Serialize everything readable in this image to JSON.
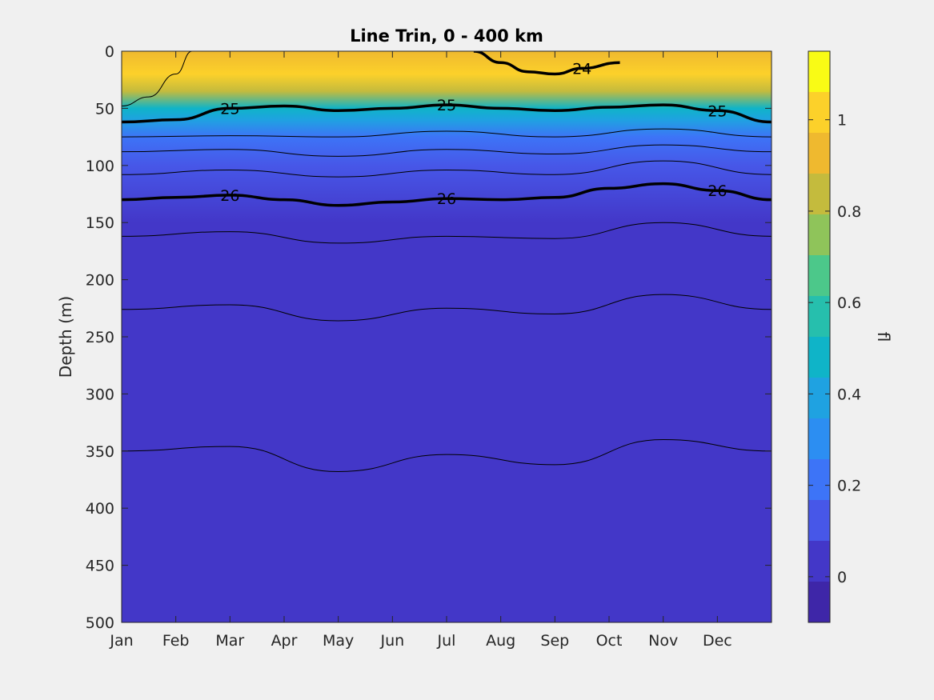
{
  "chart_data": {
    "type": "heatmap",
    "title": "Line Trin, 0 - 400 km",
    "ylabel": "Depth (m)",
    "colorbar_label": "fl",
    "x_categories": [
      "Jan",
      "Feb",
      "Mar",
      "Apr",
      "May",
      "Jun",
      "Jul",
      "Aug",
      "Sep",
      "Oct",
      "Nov",
      "Dec"
    ],
    "x_range_months": [
      0,
      12
    ],
    "y_ticks": [
      "0",
      "50",
      "100",
      "150",
      "200",
      "250",
      "300",
      "350",
      "400",
      "450",
      "500"
    ],
    "y_range": [
      0,
      500
    ],
    "y_reversed": true,
    "colorbar_ticks": [
      "0",
      "0.2",
      "0.4",
      "0.6",
      "0.8",
      "1"
    ],
    "colorbar_range": [
      -0.1,
      1.15
    ],
    "colorbar_step": 0.05,
    "colormap": [
      "#3e26a8",
      "#4337c8",
      "#4757e8",
      "#3d74f7",
      "#2c8ef2",
      "#1fa2e1",
      "#0fb4c8",
      "#26bfad",
      "#4cc88a",
      "#8fc45a",
      "#c4bb3d",
      "#efb92f",
      "#fcd12a",
      "#f9fb15"
    ],
    "fluorescence_profile": [
      {
        "depth": 0,
        "value": 0.95
      },
      {
        "depth": 20,
        "value": 1.0
      },
      {
        "depth": 35,
        "value": 0.8
      },
      {
        "depth": 50,
        "value": 0.5
      },
      {
        "depth": 60,
        "value": 0.35
      },
      {
        "depth": 75,
        "value": 0.2
      },
      {
        "depth": 100,
        "value": 0.12
      },
      {
        "depth": 150,
        "value": 0.05
      },
      {
        "depth": 250,
        "value": 0.05
      },
      {
        "depth": 500,
        "value": 0.05
      }
    ],
    "contours_bold": [
      {
        "label": "24",
        "x": [
          6.5,
          7,
          7.5,
          8,
          8.5,
          9.2
        ],
        "y": [
          0,
          10,
          18,
          20,
          15,
          10
        ]
      },
      {
        "label": "25",
        "x": [
          0,
          1,
          2,
          3,
          4,
          5,
          6,
          7,
          8,
          9,
          10,
          11,
          12
        ],
        "y": [
          62,
          60,
          50,
          48,
          52,
          50,
          47,
          50,
          52,
          49,
          47,
          52,
          62
        ]
      },
      {
        "label": "26",
        "x": [
          0,
          1,
          2,
          3,
          4,
          5,
          6,
          7,
          8,
          9,
          10,
          11,
          12
        ],
        "y": [
          130,
          128,
          126,
          130,
          135,
          132,
          129,
          130,
          128,
          120,
          116,
          122,
          130
        ]
      }
    ],
    "contours_thin": [
      {
        "x": [
          0,
          0.5,
          1,
          1.3
        ],
        "y": [
          48,
          40,
          20,
          0
        ]
      },
      {
        "x": [
          0,
          2,
          4,
          6,
          8,
          10,
          12
        ],
        "y": [
          75,
          74,
          75,
          70,
          75,
          68,
          75
        ]
      },
      {
        "x": [
          0,
          2,
          4,
          6,
          8,
          10,
          12
        ],
        "y": [
          88,
          86,
          92,
          86,
          90,
          82,
          88
        ]
      },
      {
        "x": [
          0,
          2,
          4,
          6,
          8,
          10,
          12
        ],
        "y": [
          108,
          104,
          110,
          104,
          108,
          96,
          108
        ]
      },
      {
        "x": [
          0,
          2,
          4,
          6,
          8,
          10,
          12
        ],
        "y": [
          162,
          158,
          168,
          162,
          164,
          150,
          162
        ]
      },
      {
        "x": [
          0,
          2,
          4,
          6,
          8,
          10,
          12
        ],
        "y": [
          226,
          222,
          236,
          225,
          230,
          213,
          226
        ]
      },
      {
        "x": [
          0,
          2,
          4,
          6,
          8,
          10,
          12
        ],
        "y": [
          350,
          346,
          368,
          353,
          362,
          340,
          350
        ]
      }
    ]
  }
}
